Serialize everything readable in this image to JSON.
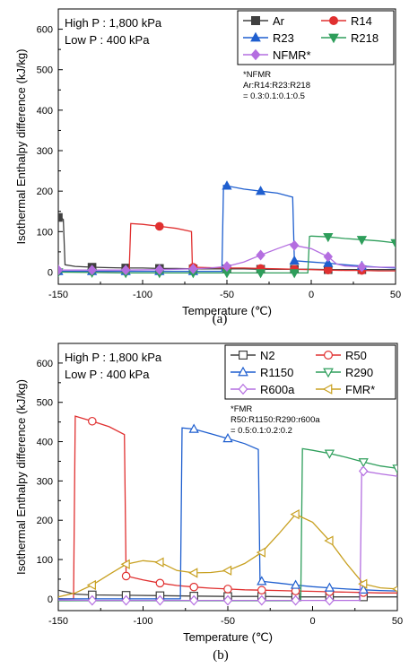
{
  "chart_data": [
    {
      "type": "line",
      "panel_label": "(a)",
      "xlabel": "Temperature (℃)",
      "ylabel": "Isothermal Enthalpy difference (kJ/kg)",
      "xlim": [
        -150,
        50
      ],
      "ylim": [
        -30,
        650
      ],
      "xticks": [
        -150,
        -100,
        -50,
        0,
        50
      ],
      "yticks": [
        0,
        100,
        200,
        300,
        400,
        500,
        600
      ],
      "conditions": [
        "High P : 1,800 kPa",
        "Low P : 400 kPa"
      ],
      "note": [
        "*NFMR",
        "Ar:R14:R23:R218",
        "= 0.3:0.1:0.1:0.5"
      ],
      "legend_position": "top-right",
      "legend_columns": 2,
      "series": [
        {
          "name": "Ar",
          "color": "#404040",
          "marker": "square",
          "filled": true,
          "x": [
            -150,
            -148,
            -147,
            -146,
            -140,
            -130,
            -120,
            -110,
            -100,
            -90,
            -80,
            -70,
            -60,
            -50,
            -40,
            -30,
            -20,
            -10,
            0,
            10,
            20,
            30,
            40,
            50
          ],
          "y": [
            135,
            133,
            130,
            18,
            14,
            12,
            11,
            10,
            10,
            9,
            9,
            8,
            8,
            8,
            8,
            7,
            7,
            7,
            7,
            6,
            6,
            6,
            6,
            6
          ],
          "marker_x": [
            -150,
            -130,
            -110,
            -90,
            -70,
            -50,
            -30,
            -10,
            10,
            30
          ]
        },
        {
          "name": "R14",
          "color": "#e03030",
          "marker": "circle",
          "filled": true,
          "x": [
            -150,
            -130,
            -110,
            -108,
            -107,
            -100,
            -90,
            -80,
            -71,
            -70.5,
            -70,
            -60,
            -50,
            -40,
            -30,
            -20,
            -10,
            0,
            10,
            20,
            30,
            40,
            50
          ],
          "y": [
            2,
            2,
            2,
            2,
            120,
            118,
            113,
            108,
            100,
            12,
            12,
            11,
            10,
            10,
            9,
            8,
            7,
            6,
            5,
            4,
            4,
            3,
            3
          ],
          "marker_x": [
            -150,
            -130,
            -110,
            -90,
            -70,
            -50,
            -30,
            -10,
            10,
            30
          ]
        },
        {
          "name": "R23",
          "color": "#1f5fcf",
          "marker": "triangle-up",
          "filled": true,
          "x": [
            -150,
            -130,
            -110,
            -90,
            -70,
            -53,
            -52,
            -50,
            -40,
            -30,
            -20,
            -11,
            -10,
            0,
            10,
            20,
            30,
            40,
            50
          ],
          "y": [
            2,
            2,
            2,
            2,
            2,
            2,
            214,
            213,
            205,
            200,
            195,
            185,
            28,
            25,
            22,
            18,
            15,
            12,
            10
          ],
          "marker_x": [
            -150,
            -130,
            -110,
            -90,
            -70,
            -50,
            -30,
            -10,
            10,
            30
          ]
        },
        {
          "name": "R218",
          "color": "#2e9e5b",
          "marker": "triangle-down",
          "filled": true,
          "x": [
            -150,
            -130,
            -110,
            -90,
            -70,
            -50,
            -30,
            -10,
            -2,
            -1,
            0,
            10,
            20,
            30,
            40,
            50
          ],
          "y": [
            0,
            -1,
            -2,
            -2,
            -2,
            -2,
            -2,
            -2,
            -2,
            88,
            89,
            87,
            83,
            80,
            77,
            72
          ],
          "marker_x": [
            -150,
            -130,
            -110,
            -90,
            -70,
            -50,
            -30,
            -10,
            10,
            30,
            50
          ]
        },
        {
          "name": "NFMR*",
          "color": "#b46ee0",
          "marker": "diamond",
          "filled": true,
          "x": [
            -150,
            -130,
            -110,
            -90,
            -70,
            -60,
            -50,
            -40,
            -30,
            -20,
            -12,
            -10,
            0,
            10,
            15,
            20,
            30,
            40,
            50
          ],
          "y": [
            5,
            5,
            5,
            6,
            8,
            10,
            14,
            25,
            42,
            58,
            70,
            66,
            58,
            38,
            20,
            15,
            13,
            12,
            12
          ],
          "marker_x": [
            -150,
            -130,
            -110,
            -90,
            -70,
            -50,
            -30,
            -10,
            10,
            30
          ]
        }
      ]
    },
    {
      "type": "line",
      "panel_label": "(b)",
      "xlabel": "Temperature (℃)",
      "ylabel": "Isothermal Enthalpy difference (kJ/kg)",
      "xlim": [
        -150,
        50
      ],
      "ylim": [
        -30,
        650
      ],
      "xticks": [
        -150,
        -100,
        -50,
        0,
        50
      ],
      "yticks": [
        0,
        100,
        200,
        300,
        400,
        500,
        600
      ],
      "conditions": [
        "High P : 1,800 kPa",
        "Low P : 400 kPa"
      ],
      "note": [
        "*FMR",
        "R50:R1150:R290:r600a",
        "= 0.5:0.1:0.2:0.2"
      ],
      "legend_position": "top-right",
      "legend_columns": 2,
      "series": [
        {
          "name": "N2",
          "color": "#404040",
          "marker": "square",
          "filled": false,
          "x": [
            -150,
            -140,
            -130,
            -110,
            -90,
            -70,
            -50,
            -30,
            -10,
            10,
            30,
            50
          ],
          "y": [
            22,
            12,
            10,
            9,
            8,
            7,
            6,
            6,
            5,
            5,
            5,
            5
          ],
          "marker_x": [
            -130,
            -110,
            -90,
            -70,
            -50,
            -30,
            -10,
            10,
            30
          ]
        },
        {
          "name": "R50",
          "color": "#e03030",
          "marker": "circle",
          "filled": false,
          "x": [
            -150,
            -145,
            -141,
            -140,
            -130,
            -120,
            -111,
            -110,
            -100,
            -90,
            -80,
            -70,
            -60,
            -50,
            -40,
            -30,
            -20,
            -10,
            0,
            10,
            20,
            30,
            40,
            50
          ],
          "y": [
            0,
            0,
            0,
            465,
            452,
            438,
            418,
            58,
            48,
            40,
            34,
            30,
            27,
            25,
            23,
            22,
            21,
            20,
            19,
            18,
            17,
            16,
            15,
            15
          ],
          "marker_x": [
            -130,
            -110,
            -90,
            -70,
            -50,
            -30,
            -10,
            10,
            30
          ]
        },
        {
          "name": "R1150",
          "color": "#1f5fcf",
          "marker": "triangle-up",
          "filled": false,
          "x": [
            -150,
            -130,
            -110,
            -90,
            -78,
            -77,
            -70,
            -60,
            -50,
            -40,
            -32,
            -31,
            -20,
            -10,
            0,
            10,
            20,
            30,
            40,
            50
          ],
          "y": [
            0,
            0,
            0,
            0,
            0,
            435,
            432,
            420,
            408,
            395,
            380,
            45,
            40,
            35,
            31,
            28,
            25,
            23,
            21,
            20
          ],
          "marker_x": [
            -70,
            -50,
            -30,
            -10,
            10,
            30
          ]
        },
        {
          "name": "R290",
          "color": "#2e9e5b",
          "marker": "triangle-down",
          "filled": false,
          "x": [
            -150,
            -130,
            -110,
            -90,
            -70,
            -50,
            -30,
            -10,
            -7,
            -6,
            0,
            10,
            20,
            30,
            40,
            50
          ],
          "y": [
            -5,
            -5,
            -5,
            -5,
            -5,
            -5,
            -5,
            -5,
            -5,
            382,
            378,
            370,
            360,
            348,
            338,
            332
          ],
          "marker_x": [
            10,
            30,
            50
          ]
        },
        {
          "name": "R600a",
          "color": "#b46ee0",
          "marker": "diamond",
          "filled": false,
          "x": [
            -150,
            -130,
            -110,
            -90,
            -70,
            -50,
            -30,
            -10,
            10,
            28,
            29,
            30,
            40,
            50
          ],
          "y": [
            -3,
            -4,
            -4,
            -4,
            -4,
            -4,
            -4,
            -4,
            -4,
            -4,
            332,
            325,
            318,
            312
          ],
          "marker_x": [
            -130,
            -110,
            -90,
            -70,
            -50,
            -30,
            -10,
            10,
            30
          ]
        },
        {
          "name": "FMR*",
          "color": "#c8a020",
          "marker": "triangle-left",
          "filled": false,
          "x": [
            -150,
            -140,
            -130,
            -120,
            -110,
            -100,
            -90,
            -80,
            -70,
            -60,
            -50,
            -40,
            -30,
            -20,
            -10,
            0,
            10,
            20,
            30,
            40,
            50
          ],
          "y": [
            5,
            15,
            35,
            62,
            88,
            97,
            93,
            72,
            66,
            67,
            72,
            90,
            118,
            165,
            215,
            195,
            148,
            90,
            38,
            28,
            25
          ],
          "marker_x": [
            -130,
            -110,
            -90,
            -70,
            -50,
            -30,
            -10,
            10,
            30,
            50
          ]
        }
      ]
    }
  ]
}
